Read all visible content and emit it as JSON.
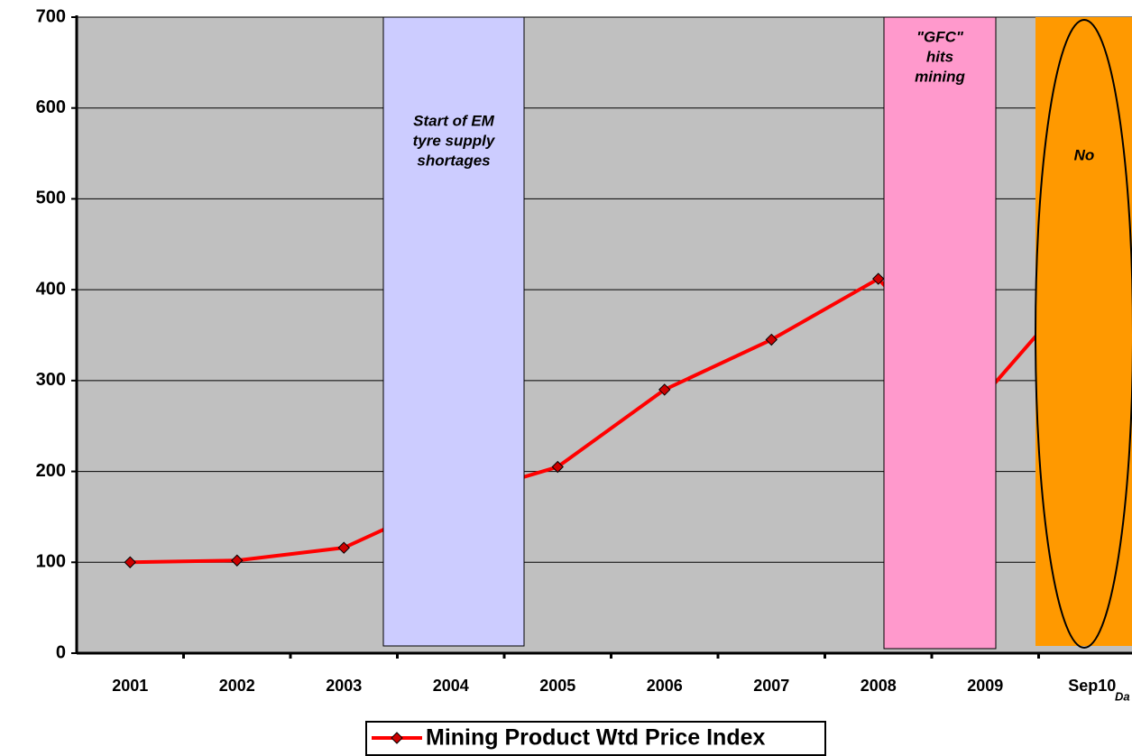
{
  "chart_data": {
    "type": "line",
    "categories": [
      "2001",
      "2002",
      "2003",
      "2004",
      "2005",
      "2006",
      "2007",
      "2008",
      "2009",
      "Sep10"
    ],
    "series": [
      {
        "name": "Mining Product Wtd Price Index",
        "color": "#ff0000",
        "marker_color": "#cc0000",
        "values": [
          100,
          102,
          116,
          170,
          205,
          290,
          345,
          412,
          285,
          420
        ]
      }
    ],
    "ylim": [
      0,
      700
    ],
    "yticks": [
      0,
      100,
      200,
      300,
      400,
      500,
      600,
      700
    ],
    "grid": true,
    "annotations": [
      {
        "lines": [
          "Start of EM",
          "tyre supply",
          "shortages"
        ],
        "color": "#ccccff"
      },
      {
        "lines": [
          "\"GFC\"",
          "hits",
          "mining"
        ],
        "color": "#ff99cc"
      },
      {
        "lines": [
          "No"
        ],
        "color": "#ff9900"
      }
    ],
    "footnote": "Da"
  }
}
